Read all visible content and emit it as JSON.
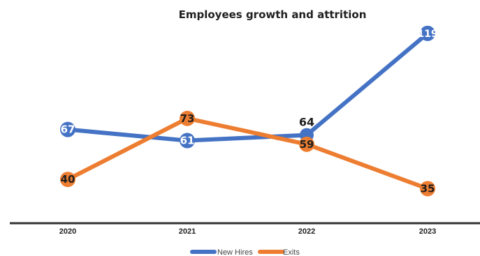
{
  "chart_data": {
    "type": "line",
    "title": "Employees growth and attrition",
    "xlabel": "",
    "ylabel": "",
    "categories": [
      "2020",
      "2021",
      "2022",
      "2023"
    ],
    "ylim": [
      0,
      130
    ],
    "grid": false,
    "legend_position": "bottom",
    "series": [
      {
        "name": "New Hires",
        "color": "#4472c4",
        "values": [
          67,
          61,
          64,
          119
        ]
      },
      {
        "name": "Exits",
        "color": "#ed7d31",
        "values": [
          40,
          73,
          59,
          35
        ]
      }
    ],
    "axis_color": "#333333"
  }
}
